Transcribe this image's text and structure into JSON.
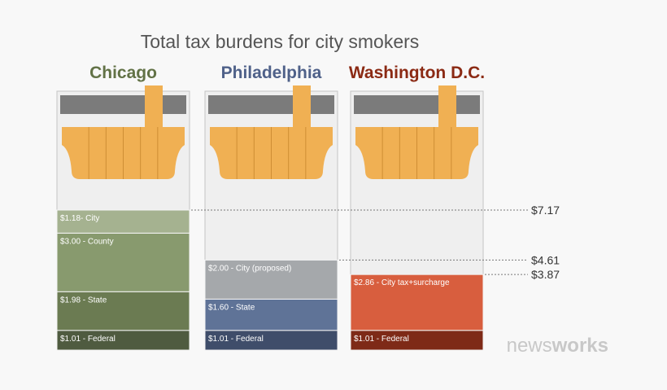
{
  "chart_data": {
    "type": "bar",
    "stacked": true,
    "title": "Total tax burdens for city smokers",
    "unit": "$ per pack",
    "categories": [
      "Chicago",
      "Philadelphia",
      "Washington D.C."
    ],
    "category_colors": [
      "#627246",
      "#4f6189",
      "#8b2a14"
    ],
    "bars": [
      {
        "category": "Chicago",
        "total_label": "$7.17",
        "segments": [
          {
            "label": "$1.01 - Federal",
            "value": 1.01,
            "color": "#4f5b40"
          },
          {
            "label": "$1.98 - State",
            "value": 1.98,
            "color": "#6b7b52"
          },
          {
            "label": "$3.00 - County",
            "value": 3.0,
            "color": "#889a6e"
          },
          {
            "label": "$1.18- City",
            "value": 1.18,
            "color": "#a5b290"
          }
        ]
      },
      {
        "category": "Philadelphia",
        "total_label": "$4.61",
        "segments": [
          {
            "label": "$1.01 - Federal",
            "value": 1.01,
            "color": "#3f4d6a"
          },
          {
            "label": "$1.60 - State",
            "value": 1.6,
            "color": "#5f7397"
          },
          {
            "label": "$2.00 - City (proposed)",
            "value": 2.0,
            "color": "#a5a8ab"
          }
        ]
      },
      {
        "category": "Washington D.C.",
        "total_label": "$3.87",
        "segments": [
          {
            "label": "$1.01 - Federal",
            "value": 1.01,
            "color": "#7e2a17"
          },
          {
            "label": "$2.86 - City tax+surcharge",
            "value": 2.86,
            "color": "#d85e3e"
          }
        ]
      }
    ],
    "ylim": [
      0,
      7.17
    ],
    "legend": "none",
    "grid": false
  },
  "colors": {
    "pack": "#efefef",
    "pack_border": "#c5c5c5",
    "lid": "#7b7b7b",
    "cigarette": "#f0b053",
    "cigarette_line": "#cf8e34",
    "title": "#555555",
    "total_text": "#333333",
    "leader_line": "#777777"
  },
  "watermark": "newsworks"
}
